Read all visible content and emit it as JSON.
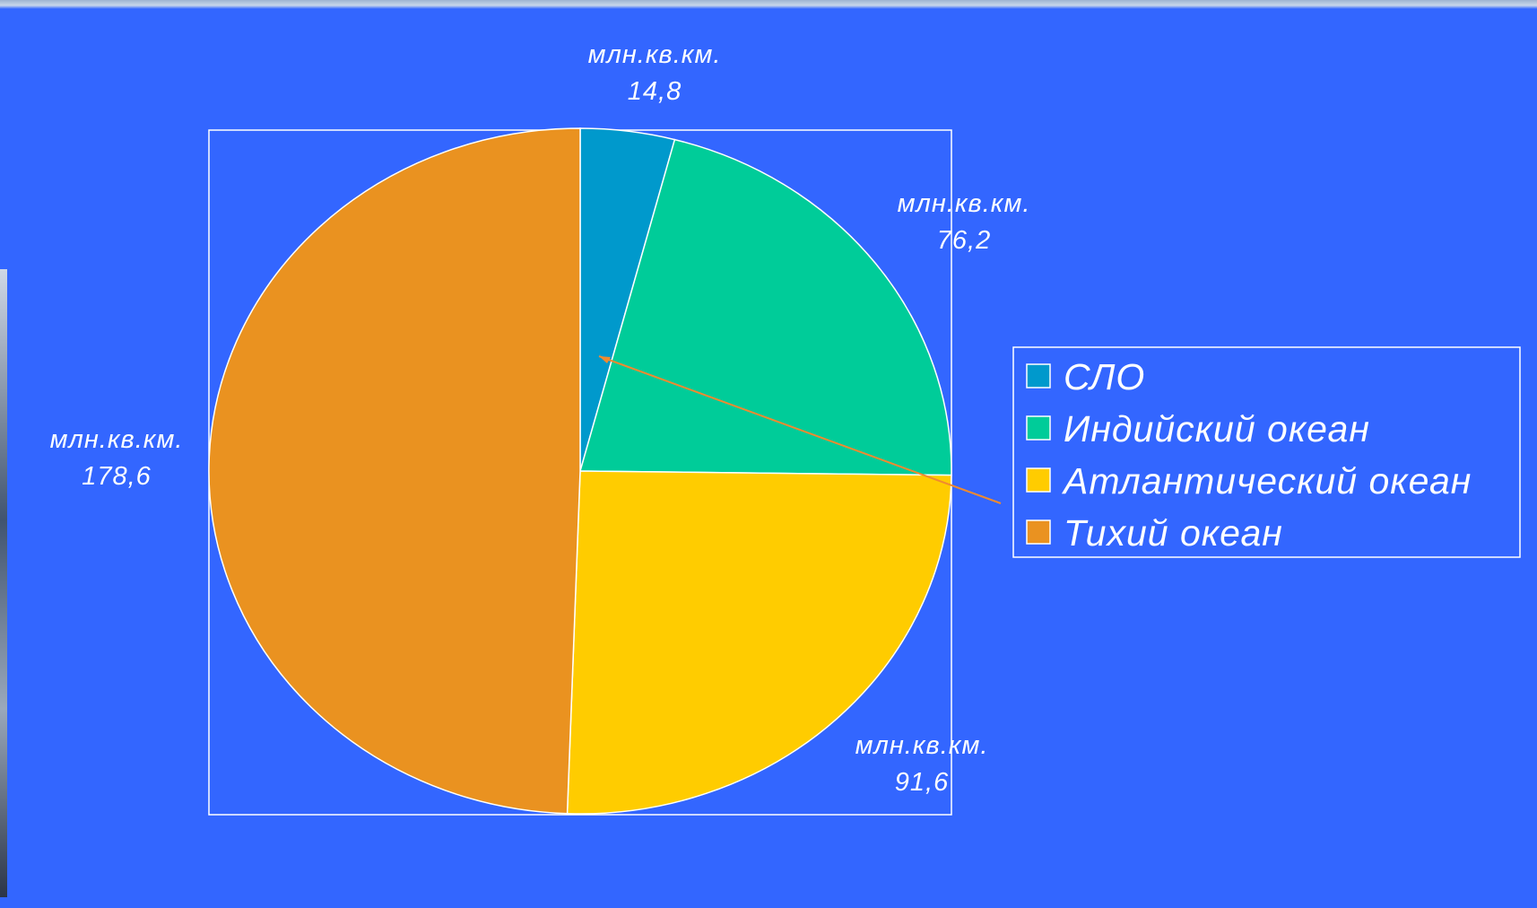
{
  "chart_data": {
    "type": "pie",
    "categories": [
      "СЛО",
      "Индийский океан",
      "Атлантический океан",
      "Тихий океан"
    ],
    "values": [
      14.8,
      76.2,
      91.6,
      178.6
    ],
    "value_labels": [
      "14,8",
      "76,2",
      "91,6",
      "178,6"
    ],
    "unit_label": "млн.кв.км.",
    "colors": [
      "#0099cc",
      "#00cc99",
      "#ffcc00",
      "#ea9220"
    ],
    "start_angle": "12 o'clock",
    "direction": "clockwise",
    "legend": {
      "position": "right",
      "entries": [
        "СЛО",
        "Индийский океан",
        "Атлантический океан",
        "Тихий океан"
      ]
    }
  }
}
